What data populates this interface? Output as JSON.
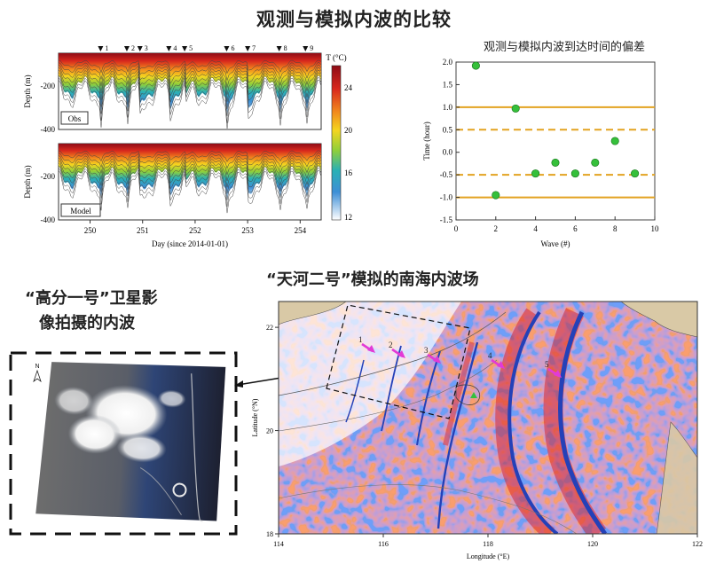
{
  "titles": {
    "main": "观测与模拟内波的比较",
    "deviation_chart": "观测与模拟内波到达时间的偏差",
    "sat_line1": "“高分一号”卫星影",
    "sat_line2": "像拍摄的内波",
    "model_map": "“天河二号”模拟的南海内波场"
  },
  "depth_panels": {
    "ylabel": "Depth (m)",
    "xlabel": "Day (since 2014-01-01)",
    "y_ticks": [
      "-200",
      "-400"
    ],
    "x_ticks": [
      "250",
      "251",
      "252",
      "253",
      "254"
    ],
    "obs_label": "Obs",
    "model_label": "Model",
    "wave_marker_labels": [
      "1",
      "2",
      "3",
      "4",
      "5",
      "6",
      "7",
      "8",
      "9"
    ],
    "wave_marker_days": [
      250.2,
      250.7,
      250.95,
      251.5,
      251.8,
      252.6,
      253.0,
      253.6,
      254.1
    ],
    "colorbar_title": "T (°C)",
    "colorbar_ticks": [
      "24",
      "20",
      "16",
      "12"
    ],
    "xlim": [
      249.4,
      254.4
    ],
    "colors": {
      "warm": "#b5111b",
      "mid": "#f2c81d",
      "cool": "#2a7fd1",
      "cold": "#f4f8fc"
    }
  },
  "chart_data": {
    "type": "scatter",
    "title": "观测与模拟内波到达时间的偏差",
    "xlabel": "Wave (#)",
    "ylabel": "Time (hour)",
    "xlim": [
      0,
      10
    ],
    "ylim": [
      -1.5,
      2.0
    ],
    "x_ticks": [
      "0",
      "2",
      "4",
      "6",
      "8",
      "10"
    ],
    "y_ticks": [
      "2.0",
      "1.5",
      "1.0",
      "0.5",
      "0.0",
      "-0.5",
      "-1.0",
      "-1.5"
    ],
    "x": [
      1,
      2,
      3,
      4,
      5,
      6,
      7,
      8,
      9
    ],
    "y": [
      1.92,
      -0.95,
      0.97,
      -0.47,
      -0.23,
      -0.47,
      -0.23,
      0.25,
      -0.47
    ],
    "solid_lines_y": [
      1.0,
      -1.0
    ],
    "dashed_lines_y": [
      0.5,
      -0.5
    ],
    "colors": {
      "points": "#35c03a",
      "lines": "#e3a321"
    }
  },
  "map": {
    "xlabel": "Longitude (°E)",
    "ylabel": "Latitude (°N)",
    "x_ticks": [
      "114",
      "116",
      "118",
      "120",
      "122"
    ],
    "y_ticks": [
      "22",
      "20",
      "18"
    ],
    "wave_labels": [
      "1",
      "2",
      "3",
      "4",
      "5"
    ],
    "colors": {
      "red": "#d8282c",
      "blue": "#2441b8",
      "land": "#d9c9a6",
      "arrow": "#e23bd6"
    }
  },
  "satellite": {
    "north_label": "N"
  }
}
